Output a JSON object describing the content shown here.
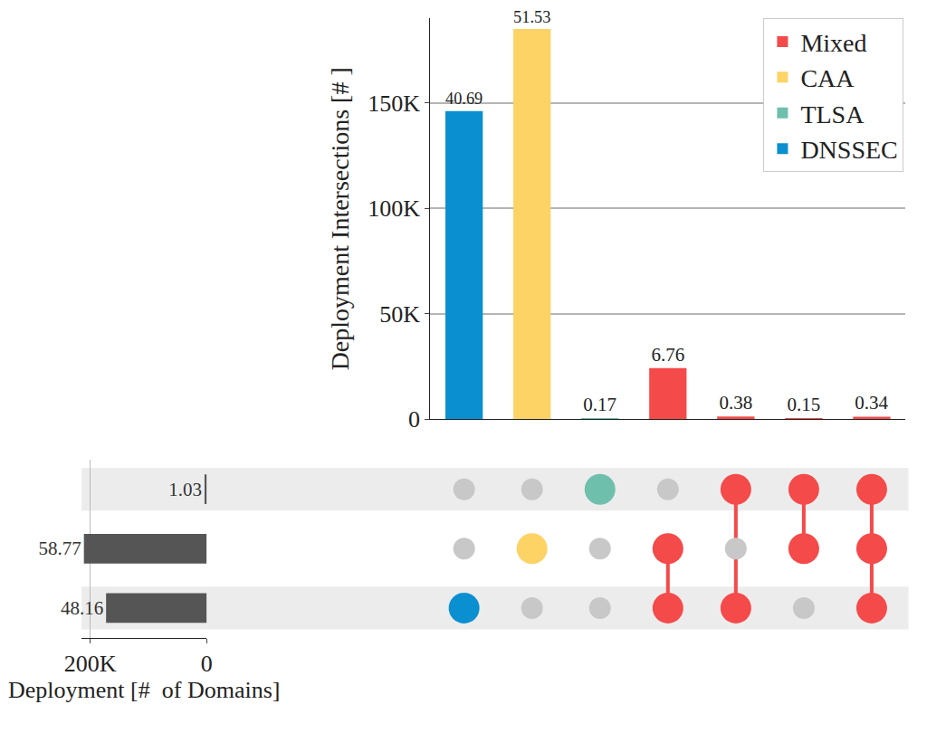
{
  "chart_data": {
    "type": "upset",
    "y_label": "Deployment Intersections [# ]",
    "x_label": "Deployment [#  of Domains]",
    "ylim": [
      0,
      190000
    ],
    "yticks": [
      0,
      {
        "value": 50000,
        "label": "50K"
      },
      {
        "value": 100000,
        "label": "100K"
      },
      {
        "value": 150000,
        "label": "150K"
      }
    ],
    "xlim": [
      215000,
      0
    ],
    "xticks": [
      {
        "value": 200000,
        "label": "200K"
      },
      0
    ],
    "grid": true,
    "legend": "upper right",
    "data_labels": true,
    "series": [
      {
        "name": "Mixed",
        "color": "#f44a4a"
      },
      {
        "name": "CAA",
        "color": "#fdd366"
      },
      {
        "name": "TLSA",
        "color": "#6fbfad"
      },
      {
        "name": "DNSSEC",
        "color": "#0a8fd0"
      }
    ],
    "sets": [
      {
        "name": "TLSA",
        "size": 3700,
        "percentage": 1.03
      },
      {
        "name": "CAA",
        "size": 211000,
        "percentage": 58.77
      },
      {
        "name": "DNSSEC",
        "size": 172900,
        "percentage": 48.16
      }
    ],
    "intersections": [
      {
        "members": [
          "DNSSEC"
        ],
        "group": "DNSSEC",
        "value": 146077,
        "percentage": 40.69
      },
      {
        "members": [
          "CAA"
        ],
        "group": "CAA",
        "value": 184993,
        "percentage": 51.53
      },
      {
        "members": [
          "TLSA"
        ],
        "group": "TLSA",
        "value": 610,
        "percentage": 0.17
      },
      {
        "members": [
          "CAA",
          "DNSSEC"
        ],
        "group": "Mixed",
        "value": 24268,
        "percentage": 6.76
      },
      {
        "members": [
          "TLSA",
          "DNSSEC"
        ],
        "group": "Mixed",
        "value": 1364,
        "percentage": 0.38
      },
      {
        "members": [
          "TLSA",
          "CAA"
        ],
        "group": "Mixed",
        "value": 539,
        "percentage": 0.15
      },
      {
        "members": [
          "TLSA",
          "CAA",
          "DNSSEC"
        ],
        "group": "Mixed",
        "value": 1221,
        "percentage": 0.34
      }
    ]
  }
}
